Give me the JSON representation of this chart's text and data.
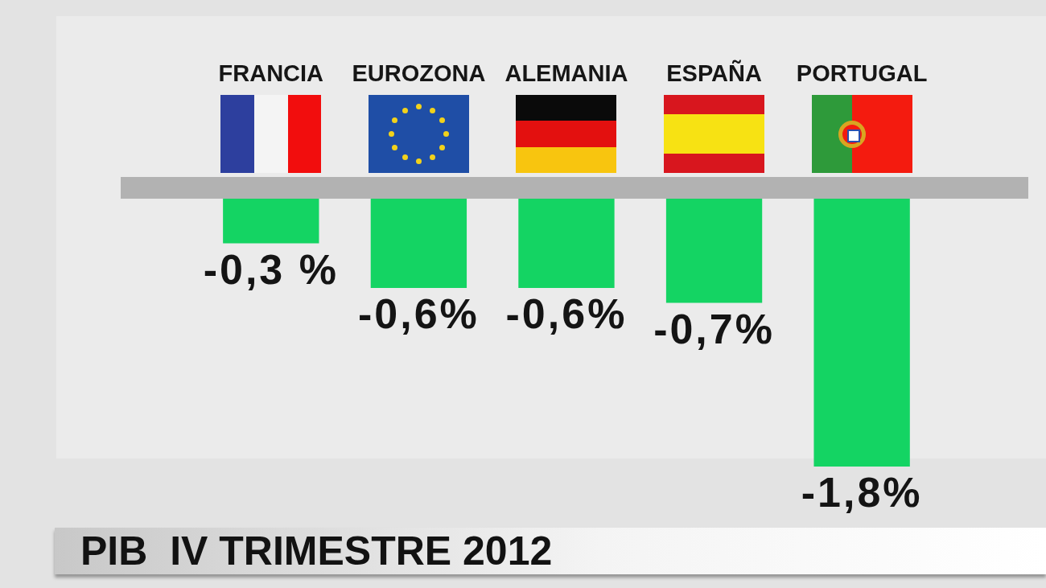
{
  "chart_data": {
    "type": "bar",
    "title": "PIB  IV TRIMESTRE 2012",
    "categories": [
      "FRANCIA",
      "EUROZONA",
      "ALEMANIA",
      "ESPAÑA",
      "PORTUGAL"
    ],
    "values": [
      -0.3,
      -0.6,
      -0.6,
      -0.7,
      -1.8
    ],
    "color": "#14d463",
    "value_labels": [
      "-0,3 %",
      "-0,6%",
      "-0,6%",
      "-0,7%",
      "-1,8%"
    ],
    "tick_labels": "x"
  }
}
